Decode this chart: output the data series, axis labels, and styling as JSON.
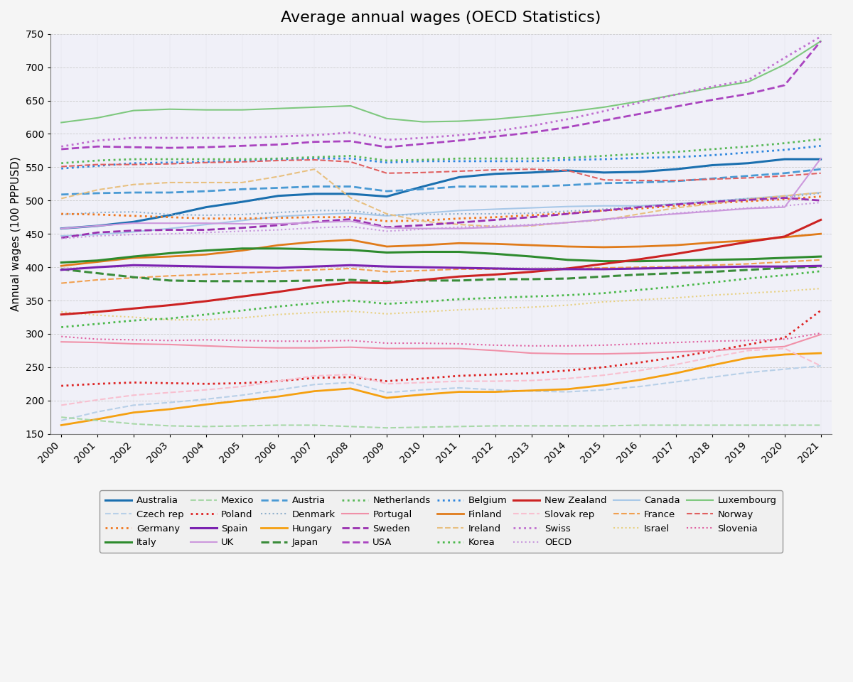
{
  "title": "Average annual wages (OECD Statistics)",
  "ylabel": "Annual wages (100 PPPUSD)",
  "years": [
    2000,
    2001,
    2002,
    2003,
    2004,
    2005,
    2006,
    2007,
    2008,
    2009,
    2010,
    2011,
    2012,
    2013,
    2014,
    2015,
    2016,
    2017,
    2018,
    2019,
    2020,
    2021
  ],
  "ylim": [
    150,
    750
  ],
  "yticks": [
    150,
    200,
    250,
    300,
    350,
    400,
    450,
    500,
    550,
    600,
    650,
    700,
    750
  ],
  "series": {
    "Australia": {
      "color": "#1a6faf",
      "linestyle": "solid",
      "linewidth": 2.2,
      "data": [
        458,
        462,
        468,
        478,
        490,
        498,
        507,
        510,
        510,
        506,
        521,
        535,
        540,
        542,
        545,
        542,
        543,
        547,
        553,
        556,
        562,
        562
      ]
    },
    "Austria": {
      "color": "#4a9ad4",
      "linestyle": "dashed",
      "linewidth": 2.0,
      "data": [
        509,
        511,
        512,
        512,
        514,
        517,
        519,
        521,
        521,
        514,
        517,
        521,
        521,
        521,
        523,
        526,
        527,
        529,
        533,
        537,
        541,
        547
      ]
    },
    "Belgium": {
      "color": "#2e86de",
      "linestyle": "dotted",
      "linewidth": 2.0,
      "data": [
        548,
        552,
        556,
        557,
        558,
        560,
        562,
        563,
        563,
        557,
        559,
        559,
        559,
        559,
        561,
        562,
        564,
        565,
        568,
        572,
        576,
        582
      ]
    },
    "Canada": {
      "color": "#a8c8e8",
      "linestyle": "solid",
      "linewidth": 1.5,
      "data": [
        447,
        449,
        453,
        458,
        464,
        470,
        476,
        479,
        481,
        477,
        481,
        485,
        487,
        489,
        491,
        492,
        492,
        495,
        499,
        503,
        507,
        512
      ]
    },
    "Czech rep": {
      "color": "#b8d0e8",
      "linestyle": "dashed",
      "linewidth": 1.5,
      "data": [
        170,
        183,
        193,
        197,
        202,
        208,
        216,
        224,
        227,
        212,
        216,
        219,
        216,
        214,
        213,
        216,
        221,
        228,
        235,
        242,
        247,
        252
      ]
    },
    "Denmark": {
      "color": "#90b0cc",
      "linestyle": "dotted",
      "linewidth": 1.5,
      "data": [
        479,
        482,
        483,
        479,
        478,
        479,
        482,
        485,
        485,
        478,
        479,
        480,
        480,
        481,
        484,
        487,
        491,
        495,
        499,
        503,
        505,
        511
      ]
    },
    "Finland": {
      "color": "#e07b1a",
      "linestyle": "solid",
      "linewidth": 2.0,
      "data": [
        402,
        408,
        414,
        416,
        419,
        425,
        433,
        438,
        441,
        431,
        433,
        436,
        435,
        433,
        431,
        430,
        431,
        433,
        437,
        440,
        445,
        450
      ]
    },
    "France": {
      "color": "#f0a050",
      "linestyle": "dashed",
      "linewidth": 1.5,
      "data": [
        376,
        381,
        384,
        387,
        389,
        391,
        394,
        396,
        398,
        393,
        395,
        397,
        397,
        397,
        398,
        399,
        400,
        401,
        403,
        405,
        408,
        411
      ]
    },
    "Germany": {
      "color": "#f07820",
      "linestyle": "dotted",
      "linewidth": 2.0,
      "data": [
        480,
        479,
        477,
        475,
        473,
        473,
        474,
        475,
        475,
        469,
        470,
        473,
        475,
        478,
        481,
        485,
        488,
        492,
        496,
        499,
        502,
        506
      ]
    },
    "Hungary": {
      "color": "#f5a010",
      "linestyle": "solid",
      "linewidth": 2.0,
      "data": [
        163,
        172,
        182,
        187,
        194,
        200,
        206,
        214,
        218,
        204,
        209,
        213,
        213,
        215,
        217,
        223,
        231,
        241,
        253,
        264,
        269,
        271
      ]
    },
    "Ireland": {
      "color": "#e8c080",
      "linestyle": "dashed",
      "linewidth": 1.5,
      "data": [
        503,
        516,
        524,
        527,
        527,
        527,
        536,
        547,
        504,
        480,
        469,
        464,
        461,
        462,
        467,
        471,
        480,
        489,
        495,
        502,
        507,
        512
      ]
    },
    "Israel": {
      "color": "#e8d080",
      "linestyle": "dotted",
      "linewidth": 1.5,
      "data": [
        333,
        328,
        325,
        321,
        321,
        324,
        329,
        332,
        334,
        330,
        333,
        336,
        338,
        340,
        343,
        348,
        351,
        354,
        358,
        361,
        364,
        368
      ]
    },
    "Italy": {
      "color": "#2e8b2e",
      "linestyle": "solid",
      "linewidth": 2.2,
      "data": [
        407,
        410,
        416,
        421,
        425,
        428,
        428,
        427,
        426,
        422,
        423,
        423,
        420,
        416,
        411,
        409,
        409,
        410,
        411,
        412,
        414,
        416
      ]
    },
    "Japan": {
      "color": "#3a8c3a",
      "linestyle": "dashed",
      "linewidth": 2.2,
      "data": [
        397,
        391,
        385,
        380,
        379,
        379,
        379,
        380,
        381,
        378,
        380,
        380,
        382,
        382,
        383,
        386,
        389,
        391,
        393,
        396,
        399,
        401
      ]
    },
    "Korea": {
      "color": "#4ab84a",
      "linestyle": "dotted",
      "linewidth": 2.0,
      "data": [
        310,
        315,
        320,
        323,
        329,
        335,
        341,
        346,
        350,
        345,
        348,
        352,
        354,
        356,
        358,
        361,
        366,
        371,
        377,
        383,
        388,
        394
      ]
    },
    "Luxembourg": {
      "color": "#7ec87e",
      "linestyle": "solid",
      "linewidth": 1.5,
      "data": [
        617,
        624,
        635,
        637,
        636,
        636,
        638,
        640,
        642,
        623,
        618,
        619,
        622,
        627,
        633,
        640,
        649,
        659,
        669,
        678,
        704,
        739
      ]
    },
    "Mexico": {
      "color": "#a8d8a8",
      "linestyle": "dashed",
      "linewidth": 1.5,
      "data": [
        175,
        170,
        165,
        162,
        161,
        162,
        163,
        163,
        161,
        159,
        160,
        161,
        162,
        162,
        162,
        162,
        163,
        163,
        163,
        163,
        163,
        163
      ]
    },
    "Netherlands": {
      "color": "#58b858",
      "linestyle": "dotted",
      "linewidth": 2.0,
      "data": [
        556,
        560,
        562,
        562,
        562,
        562,
        563,
        565,
        567,
        560,
        561,
        563,
        563,
        563,
        564,
        567,
        570,
        573,
        577,
        581,
        586,
        592
      ]
    },
    "New Zealand": {
      "color": "#cc2222",
      "linestyle": "solid",
      "linewidth": 2.2,
      "data": [
        329,
        333,
        338,
        343,
        349,
        356,
        363,
        371,
        377,
        376,
        381,
        386,
        389,
        393,
        398,
        405,
        412,
        420,
        429,
        438,
        446,
        471
      ]
    },
    "Norway": {
      "color": "#e06060",
      "linestyle": "dashed",
      "linewidth": 1.5,
      "data": [
        551,
        554,
        554,
        555,
        557,
        558,
        560,
        561,
        558,
        541,
        542,
        544,
        546,
        547,
        545,
        531,
        530,
        530,
        532,
        534,
        537,
        541
      ]
    },
    "Poland": {
      "color": "#dd2222",
      "linestyle": "dotted",
      "linewidth": 2.0,
      "data": [
        222,
        225,
        227,
        226,
        225,
        226,
        229,
        234,
        235,
        229,
        233,
        237,
        239,
        241,
        245,
        250,
        257,
        265,
        274,
        284,
        294,
        335
      ]
    },
    "Portugal": {
      "color": "#f090a8",
      "linestyle": "solid",
      "linewidth": 1.5,
      "data": [
        288,
        287,
        285,
        284,
        282,
        280,
        279,
        279,
        280,
        278,
        278,
        278,
        275,
        271,
        270,
        270,
        271,
        273,
        275,
        278,
        281,
        299
      ]
    },
    "Slovak rep": {
      "color": "#f8c0d0",
      "linestyle": "dashed",
      "linewidth": 1.5,
      "data": [
        193,
        201,
        208,
        212,
        216,
        221,
        229,
        237,
        239,
        225,
        227,
        229,
        229,
        230,
        233,
        238,
        245,
        254,
        265,
        275,
        278,
        252
      ]
    },
    "Slovenia": {
      "color": "#e060a0",
      "linestyle": "dotted",
      "linewidth": 1.5,
      "data": [
        296,
        292,
        291,
        290,
        291,
        290,
        289,
        289,
        290,
        286,
        286,
        285,
        283,
        282,
        282,
        283,
        285,
        287,
        289,
        290,
        292,
        301
      ]
    },
    "Spain": {
      "color": "#7b22b0",
      "linestyle": "solid",
      "linewidth": 2.2,
      "data": [
        396,
        400,
        403,
        402,
        401,
        400,
        399,
        401,
        403,
        401,
        400,
        399,
        398,
        397,
        397,
        397,
        398,
        399,
        400,
        401,
        401,
        402
      ]
    },
    "Sweden": {
      "color": "#9930b0",
      "linestyle": "dashed",
      "linewidth": 2.0,
      "data": [
        444,
        452,
        455,
        456,
        456,
        459,
        463,
        468,
        472,
        460,
        463,
        467,
        471,
        475,
        480,
        485,
        490,
        494,
        498,
        501,
        504,
        500
      ]
    },
    "Swiss": {
      "color": "#c070d0",
      "linestyle": "dotted",
      "linewidth": 2.0,
      "data": [
        581,
        590,
        594,
        594,
        594,
        594,
        596,
        598,
        602,
        591,
        594,
        598,
        604,
        612,
        622,
        634,
        647,
        659,
        671,
        681,
        714,
        746
      ]
    },
    "UK": {
      "color": "#cc98dc",
      "linestyle": "solid",
      "linewidth": 1.5,
      "data": [
        458,
        462,
        466,
        466,
        466,
        465,
        465,
        467,
        469,
        459,
        458,
        458,
        460,
        463,
        467,
        472,
        476,
        480,
        484,
        488,
        490,
        563
      ]
    },
    "USA": {
      "color": "#aa44c0",
      "linestyle": "dashed",
      "linewidth": 2.0,
      "data": [
        577,
        581,
        580,
        579,
        580,
        582,
        584,
        588,
        589,
        580,
        585,
        590,
        596,
        602,
        610,
        620,
        630,
        641,
        651,
        660,
        673,
        739
      ]
    },
    "OECD": {
      "color": "#c898dc",
      "linestyle": "dotted",
      "linewidth": 1.5,
      "data": [
        443,
        447,
        449,
        450,
        452,
        454,
        456,
        459,
        461,
        454,
        457,
        460,
        462,
        464,
        467,
        471,
        476,
        481,
        485,
        489,
        492,
        497
      ]
    }
  },
  "legend_order": [
    [
      "Australia",
      "#1a6faf",
      "solid",
      2.2
    ],
    [
      "Czech rep",
      "#b8d0e8",
      "dashed",
      1.5
    ],
    [
      "Germany",
      "#f07820",
      "dotted",
      2.0
    ],
    [
      "Italy",
      "#2e8b2e",
      "solid",
      2.2
    ],
    [
      "Mexico",
      "#a8d8a8",
      "dashed",
      1.5
    ],
    [
      "Poland",
      "#dd2222",
      "dotted",
      2.0
    ],
    [
      "Spain",
      "#7b22b0",
      "solid",
      2.2
    ],
    [
      "UK",
      "#cc98dc",
      "solid",
      1.5
    ],
    [
      "Austria",
      "#4a9ad4",
      "dashed",
      2.0
    ],
    [
      "Denmark",
      "#90b0cc",
      "dotted",
      1.5
    ],
    [
      "Hungary",
      "#f5a010",
      "solid",
      2.0
    ],
    [
      "Japan",
      "#3a8c3a",
      "dashed",
      2.2
    ],
    [
      "Netherlands",
      "#58b858",
      "dotted",
      2.0
    ],
    [
      "Portugal",
      "#f090a8",
      "solid",
      1.5
    ],
    [
      "Sweden",
      "#9930b0",
      "dashed",
      2.0
    ],
    [
      "USA",
      "#aa44c0",
      "dashed",
      2.0
    ],
    [
      "Belgium",
      "#2e86de",
      "dotted",
      2.0
    ],
    [
      "Finland",
      "#e07b1a",
      "solid",
      2.0
    ],
    [
      "Ireland",
      "#e8c080",
      "dashed",
      1.5
    ],
    [
      "Korea",
      "#4ab84a",
      "dotted",
      2.0
    ],
    [
      "New Zealand",
      "#cc2222",
      "solid",
      2.2
    ],
    [
      "Slovak rep",
      "#f8c0d0",
      "dashed",
      1.5
    ],
    [
      "Swiss",
      "#c070d0",
      "dotted",
      2.0
    ],
    [
      "OECD",
      "#c898dc",
      "dotted",
      1.5
    ],
    [
      "Canada",
      "#a8c8e8",
      "solid",
      1.5
    ],
    [
      "France",
      "#f0a050",
      "dashed",
      1.5
    ],
    [
      "Israel",
      "#e8d080",
      "dotted",
      1.5
    ],
    [
      "Luxembourg",
      "#7ec87e",
      "solid",
      1.5
    ],
    [
      "Norway",
      "#e06060",
      "dashed",
      1.5
    ],
    [
      "Slovenia",
      "#e060a0",
      "dotted",
      1.5
    ]
  ],
  "background_color": "#f5f5f5",
  "plot_bg_color": "#f0f0f8",
  "grid_color": "#c8c8c8",
  "title_fontsize": 16,
  "label_fontsize": 11,
  "tick_fontsize": 10,
  "legend_fontsize": 9.5
}
